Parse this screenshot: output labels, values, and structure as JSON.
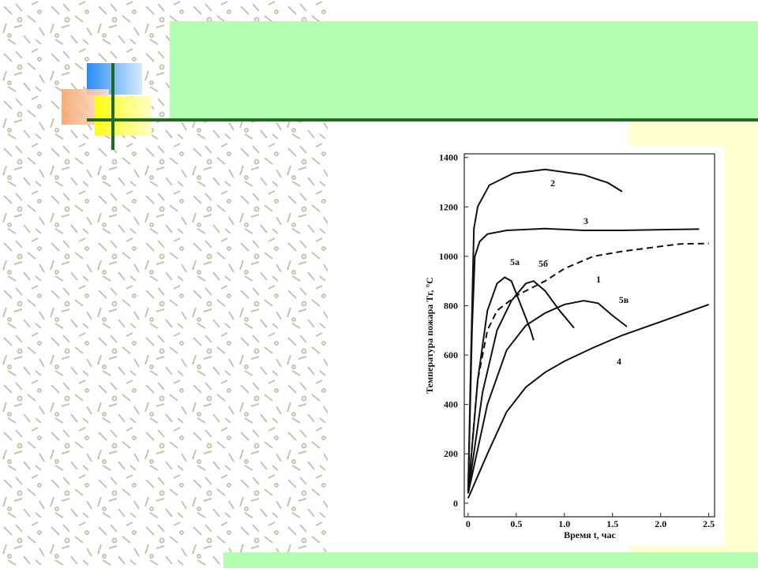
{
  "chart_data": {
    "type": "line",
    "y_label": "Температура пожара Tг, °C",
    "x_label": "Время t, час",
    "xlim": [
      -0.04,
      2.56
    ],
    "xticks": [
      0,
      0.5,
      {
        "value": 1,
        "label": "1.0"
      },
      1.5,
      {
        "value": 2,
        "label": "2.0"
      },
      2.5
    ],
    "ylim": [
      -55,
      1415
    ],
    "yticks": [
      0,
      200,
      400,
      600,
      800,
      1000,
      1200,
      1400
    ],
    "series": [
      {
        "name": "2",
        "color": "#111111",
        "line_style": "solid",
        "x": [
          0,
          0.03,
          0.06,
          0.1,
          0.22,
          0.47,
          0.8,
          1.2,
          1.45,
          1.6
        ],
        "values": [
          50,
          600,
          1112,
          1202,
          1288,
          1336,
          1352,
          1330,
          1298,
          1262
        ]
      },
      {
        "name": "3",
        "color": "#111111",
        "line_style": "solid",
        "x": [
          0,
          0.04,
          0.07,
          0.12,
          0.2,
          0.4,
          0.8,
          1.2,
          1.6,
          2.0,
          2.4
        ],
        "values": [
          50,
          700,
          1000,
          1060,
          1090,
          1105,
          1112,
          1105,
          1105,
          1108,
          1110
        ]
      },
      {
        "name": "1",
        "color": "#111111",
        "line_style": "dashed",
        "x": [
          0,
          0.1,
          0.2,
          0.3,
          0.5,
          0.8,
          1.0,
          1.3,
          1.6,
          2.0,
          2.2,
          2.5
        ],
        "values": [
          50,
          500,
          700,
          780,
          840,
          900,
          950,
          1000,
          1020,
          1040,
          1050,
          1052
        ]
      },
      {
        "name": "5а",
        "color": "#111111",
        "line_style": "solid",
        "x": [
          0,
          0.1,
          0.2,
          0.3,
          0.38,
          0.45,
          0.55,
          0.65,
          0.68
        ],
        "values": [
          40,
          500,
          780,
          890,
          915,
          900,
          800,
          700,
          660
        ]
      },
      {
        "name": "5б",
        "color": "#111111",
        "line_style": "solid",
        "x": [
          0,
          0.15,
          0.3,
          0.45,
          0.6,
          0.68,
          0.8,
          0.95,
          1.1
        ],
        "values": [
          40,
          450,
          700,
          820,
          890,
          900,
          860,
          780,
          710
        ]
      },
      {
        "name": "5в",
        "color": "#111111",
        "line_style": "solid",
        "x": [
          0,
          0.2,
          0.4,
          0.6,
          0.8,
          1.0,
          1.2,
          1.35,
          1.5,
          1.65
        ],
        "values": [
          40,
          400,
          620,
          720,
          770,
          805,
          820,
          810,
          760,
          715
        ]
      },
      {
        "name": "4",
        "color": "#111111",
        "line_style": "solid",
        "x": [
          0,
          0.2,
          0.4,
          0.6,
          0.8,
          1.0,
          1.3,
          1.6,
          2.0,
          2.5
        ],
        "values": [
          20,
          200,
          370,
          470,
          530,
          575,
          630,
          680,
          735,
          805
        ]
      }
    ]
  }
}
